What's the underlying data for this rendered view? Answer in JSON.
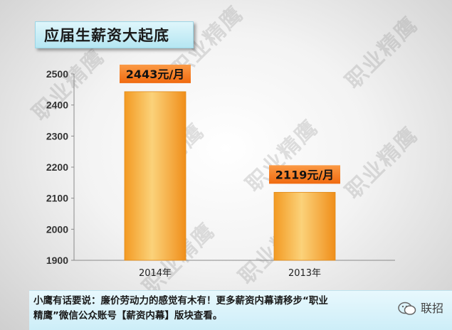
{
  "header": {
    "title": "应届生薪资大起底"
  },
  "watermark_text": "职业精鹰",
  "chart_data": {
    "type": "bar",
    "categories": [
      "2014年",
      "2013年"
    ],
    "values": [
      2443,
      2119
    ],
    "data_labels": [
      "2443元/月",
      "2119元/月"
    ],
    "ylim": [
      1900,
      2500
    ],
    "yticks": [
      1900,
      2000,
      2100,
      2200,
      2300,
      2400,
      2500
    ],
    "grid": false,
    "bar_color": "#f7a838",
    "label_color": "#f47a1f"
  },
  "footer": {
    "text": "小鹰有话要说：廉价劳动力的感觉有木有！更多薪资内幕请移步“职业精鹰”微信公众账号【薪资内幕】版块查看。",
    "brand": "联招"
  }
}
